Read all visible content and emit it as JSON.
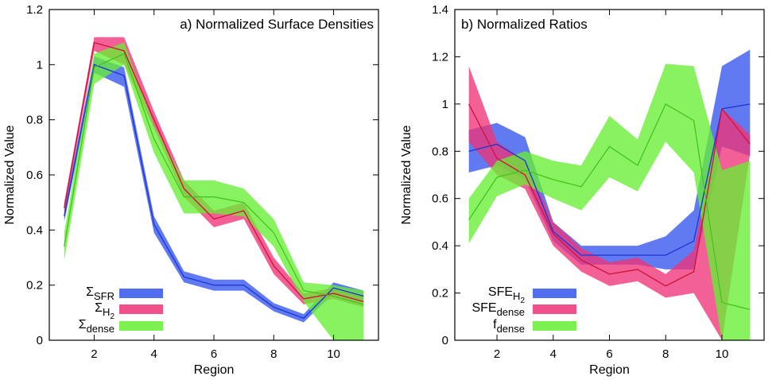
{
  "chart_data": [
    {
      "type": "line",
      "panel_title": "a) Normalized Surface Densities",
      "xlabel": "Region",
      "ylabel": "Normalized Value",
      "xlim": [
        0.5,
        11.5
      ],
      "ylim": [
        0,
        1.2
      ],
      "xticks": [
        2,
        4,
        6,
        8,
        10
      ],
      "xtick_labels": [
        "2",
        "4",
        "6",
        "8",
        "10"
      ],
      "yticks": [
        0,
        0.2,
        0.4,
        0.6,
        0.8,
        1,
        1.2
      ],
      "ytick_labels": [
        "0",
        "0.2",
        "0.4",
        "0.6",
        "0.8",
        "1",
        "1.2"
      ],
      "legend_position": "bottom-left",
      "x": [
        1,
        2,
        3,
        4,
        5,
        6,
        7,
        8,
        9,
        10,
        11
      ],
      "series": [
        {
          "name": "SFR",
          "legend_main": "Σ",
          "legend_sub": "SFR",
          "legend_sub2": "",
          "color": "#3355ee",
          "values": [
            0.45,
            1.0,
            0.96,
            0.42,
            0.23,
            0.2,
            0.2,
            0.12,
            0.08,
            0.19,
            0.16
          ],
          "lower": [
            0.43,
            0.97,
            0.92,
            0.39,
            0.21,
            0.18,
            0.18,
            0.105,
            0.065,
            0.17,
            0.14
          ],
          "upper": [
            0.47,
            1.03,
            0.99,
            0.45,
            0.25,
            0.22,
            0.22,
            0.135,
            0.095,
            0.21,
            0.18
          ]
        },
        {
          "name": "H2",
          "legend_main": "Σ",
          "legend_sub": "H",
          "legend_sub2": "2",
          "color": "#ee3377",
          "values": [
            0.48,
            1.08,
            1.05,
            0.8,
            0.55,
            0.44,
            0.47,
            0.27,
            0.15,
            0.17,
            0.14
          ],
          "lower": [
            0.46,
            1.05,
            1.0,
            0.77,
            0.52,
            0.41,
            0.44,
            0.24,
            0.13,
            0.15,
            0.12
          ],
          "upper": [
            0.5,
            1.1,
            1.1,
            0.83,
            0.58,
            0.47,
            0.5,
            0.3,
            0.17,
            0.19,
            0.16
          ]
        },
        {
          "name": "dense",
          "legend_main": "Σ",
          "legend_sub": "dense",
          "legend_sub2": "",
          "color": "#66ee33",
          "values": [
            0.34,
            0.99,
            1.04,
            0.73,
            0.52,
            0.52,
            0.5,
            0.39,
            0.18,
            0.16,
            0.13
          ],
          "lower": [
            0.29,
            0.93,
            1.0,
            0.68,
            0.46,
            0.46,
            0.45,
            0.34,
            0.14,
            0.0,
            0.0
          ],
          "upper": [
            0.39,
            1.04,
            1.08,
            0.78,
            0.58,
            0.58,
            0.55,
            0.44,
            0.21,
            0.2,
            0.18
          ]
        }
      ]
    },
    {
      "type": "line",
      "panel_title": "b) Normalized Ratios",
      "xlabel": "Region",
      "ylabel": "Normalized Value",
      "xlim": [
        0.5,
        11.5
      ],
      "ylim": [
        0,
        1.4
      ],
      "xticks": [
        2,
        4,
        6,
        8,
        10
      ],
      "xtick_labels": [
        "2",
        "4",
        "6",
        "8",
        "10"
      ],
      "yticks": [
        0,
        0.2,
        0.4,
        0.6,
        0.8,
        1,
        1.2,
        1.4
      ],
      "ytick_labels": [
        "0",
        "0.2",
        "0.4",
        "0.6",
        "0.8",
        "1",
        "1.2",
        "1.4"
      ],
      "legend_position": "bottom-left",
      "x": [
        1,
        2,
        3,
        4,
        5,
        6,
        7,
        8,
        9,
        10,
        11
      ],
      "series": [
        {
          "name": "SFE_H2",
          "legend_main": "SFE",
          "legend_sub": "H",
          "legend_sub2": "2",
          "color": "#3355ee",
          "values": [
            0.8,
            0.83,
            0.76,
            0.46,
            0.36,
            0.36,
            0.36,
            0.36,
            0.42,
            0.98,
            1.0
          ],
          "lower": [
            0.71,
            0.74,
            0.68,
            0.42,
            0.32,
            0.32,
            0.32,
            0.3,
            0.3,
            0.82,
            0.78
          ],
          "upper": [
            0.89,
            0.92,
            0.86,
            0.5,
            0.4,
            0.4,
            0.4,
            0.44,
            0.55,
            1.16,
            1.23
          ]
        },
        {
          "name": "SFE_dense",
          "legend_main": "SFE",
          "legend_sub": "dense",
          "legend_sub2": "",
          "color": "#ee3377",
          "values": [
            1.0,
            0.77,
            0.7,
            0.45,
            0.34,
            0.28,
            0.3,
            0.23,
            0.29,
            0.98,
            0.83
          ],
          "lower": [
            0.84,
            0.7,
            0.64,
            0.4,
            0.29,
            0.23,
            0.25,
            0.18,
            0.2,
            0.0,
            0.79
          ],
          "upper": [
            1.16,
            0.84,
            0.76,
            0.5,
            0.39,
            0.33,
            0.35,
            0.28,
            0.38,
            0.98,
            0.87
          ]
        },
        {
          "name": "f_dense",
          "legend_main": "f",
          "legend_sub": "dense",
          "legend_sub2": "",
          "color": "#66ee33",
          "values": [
            0.51,
            0.69,
            0.72,
            0.68,
            0.65,
            0.82,
            0.74,
            1.0,
            0.93,
            0.16,
            0.13
          ],
          "lower": [
            0.41,
            0.61,
            0.66,
            0.6,
            0.55,
            0.69,
            0.63,
            0.84,
            0.71,
            0.0,
            0.0
          ],
          "upper": [
            0.6,
            0.76,
            0.8,
            0.76,
            0.74,
            0.95,
            0.85,
            1.17,
            1.16,
            0.72,
            0.76
          ]
        }
      ]
    }
  ]
}
